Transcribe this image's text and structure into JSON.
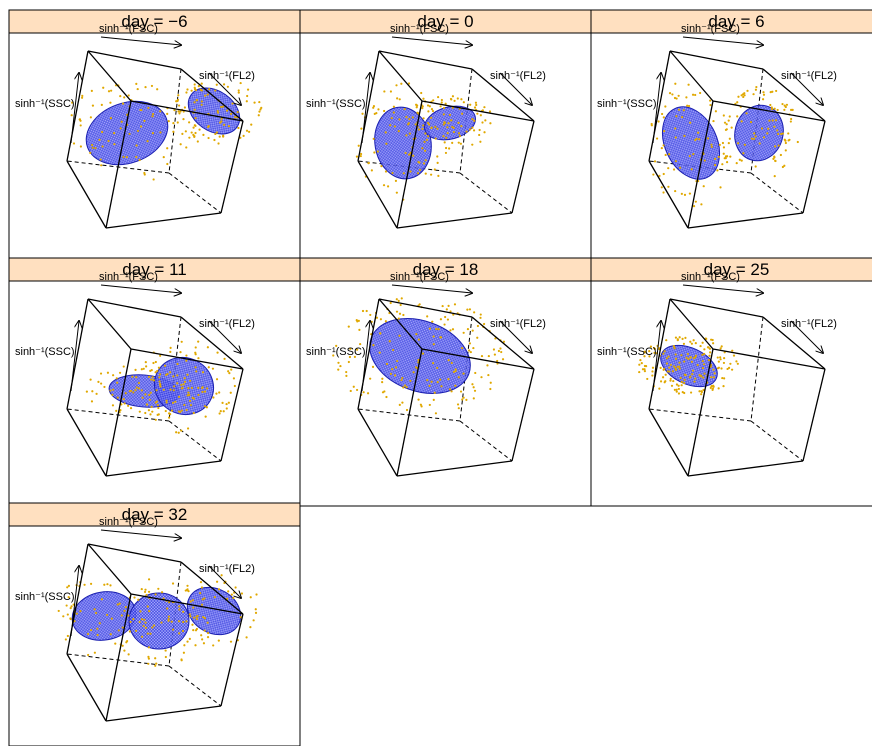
{
  "axis_labels": {
    "x": "sinh⁻¹(FSC)",
    "y": "sinh⁻¹(FL2)",
    "z": "sinh⁻¹(SSC)"
  },
  "panels": [
    {
      "title": "day = −6"
    },
    {
      "title": "day = 0"
    },
    {
      "title": "day = 6"
    },
    {
      "title": "day = 11"
    },
    {
      "title": "day = 18"
    },
    {
      "title": "day = 25"
    },
    {
      "title": "day = 32"
    }
  ]
}
